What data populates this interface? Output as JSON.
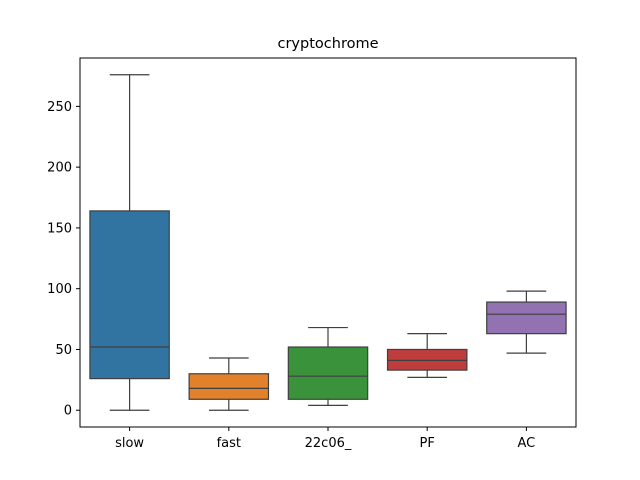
{
  "chart_data": {
    "type": "box",
    "title": "cryptochrome",
    "xlabel": "",
    "ylabel": "",
    "categories": [
      "slow",
      "fast",
      "22c06_",
      "PF",
      "AC"
    ],
    "colors": [
      "#3274a1",
      "#e1812c",
      "#3a923a",
      "#c03d3e",
      "#9372b2"
    ],
    "boxes": [
      {
        "category": "slow",
        "whislo": 0,
        "q1": 26,
        "med": 52,
        "q3": 164,
        "whishi": 276
      },
      {
        "category": "fast",
        "whislo": 0,
        "q1": 9,
        "med": 18,
        "q3": 30,
        "whishi": 43
      },
      {
        "category": "22c06_",
        "whislo": 4,
        "q1": 9,
        "med": 28,
        "q3": 52,
        "whishi": 68
      },
      {
        "category": "PF",
        "whislo": 27,
        "q1": 33,
        "med": 41,
        "q3": 50,
        "whishi": 63
      },
      {
        "category": "AC",
        "whislo": 47,
        "q1": 63,
        "med": 79,
        "q3": 89,
        "whishi": 98
      }
    ],
    "ylim": [
      -13.8,
      289.8
    ],
    "yticks": [
      0,
      50,
      100,
      150,
      200,
      250
    ],
    "ytick_labels": [
      "0",
      "50",
      "100",
      "150",
      "200",
      "250"
    ],
    "grid": false,
    "legend": "none"
  }
}
